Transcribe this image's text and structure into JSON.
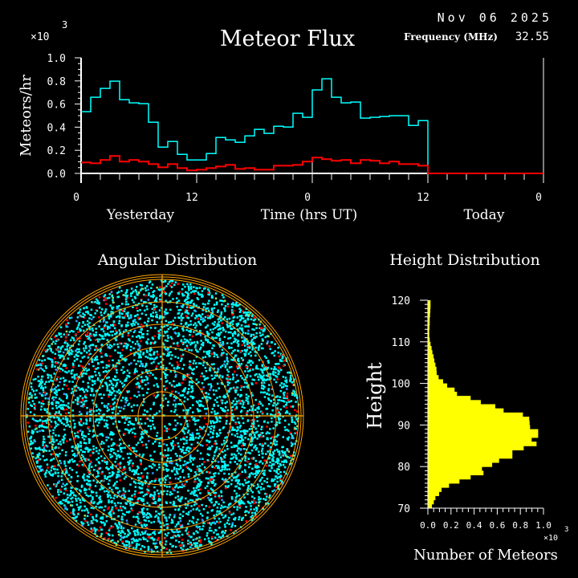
{
  "header": {
    "title": "Meteor Flux",
    "date": "Nov 06 2025",
    "frequency_label": "Frequency (MHz)",
    "frequency_value": "32.55"
  },
  "chart_data": [
    {
      "type": "line",
      "title": "Meteor Flux",
      "ylabel": "Meteors/hr",
      "xlabel": "Time (hrs UT)",
      "y_multiplier": "×10",
      "y_multiplier_exp": "3",
      "ylim": [
        0,
        1.0
      ],
      "yticks": [
        "0.0",
        "0.2",
        "0.4",
        "0.6",
        "0.8",
        "1.0"
      ],
      "xlim": [
        0,
        48
      ],
      "xticks": [
        "0",
        "12",
        "0",
        "12",
        "0"
      ],
      "day_labels": [
        "Yesterday",
        "Today"
      ],
      "step": "hourly",
      "series": [
        {
          "color": "#00ffff",
          "values": [
            0.534,
            0.659,
            0.735,
            0.798,
            0.638,
            0.61,
            0.603,
            0.443,
            0.227,
            0.276,
            0.165,
            0.116,
            0.116,
            0.172,
            0.311,
            0.29,
            0.269,
            0.325,
            0.381,
            0.346,
            0.408,
            0.401,
            0.52,
            0.485,
            0.722,
            0.819,
            0.659,
            0.61,
            0.617,
            0.478,
            0.485,
            0.492,
            0.499,
            0.499,
            0.415,
            0.457,
            0,
            0,
            0,
            0,
            0,
            0,
            0,
            0,
            0,
            0,
            0,
            0
          ]
        },
        {
          "color": "#ff0000",
          "values": [
            0.095,
            0.088,
            0.116,
            0.151,
            0.102,
            0.116,
            0.102,
            0.081,
            0.053,
            0.081,
            0.046,
            0.026,
            0.032,
            0.046,
            0.06,
            0.074,
            0.039,
            0.046,
            0.032,
            0.032,
            0.067,
            0.067,
            0.074,
            0.102,
            0.137,
            0.123,
            0.109,
            0.116,
            0.088,
            0.116,
            0.109,
            0.088,
            0.102,
            0.081,
            0.081,
            0.067,
            0,
            0,
            0,
            0,
            0,
            0,
            0,
            0,
            0,
            0,
            0,
            0
          ]
        }
      ]
    },
    {
      "type": "scatter",
      "title": "Angular Distribution",
      "colors": {
        "points": "#00ffff",
        "underdense": "#ff0000",
        "other": "#3399ff",
        "edge": "#99dd66",
        "grid": "#ffa500"
      }
    },
    {
      "type": "bar",
      "orientation": "horizontal",
      "title": "Height Distribution",
      "ylabel": "Height",
      "xlabel": "Number of Meteors",
      "x_multiplier": "×10",
      "x_multiplier_exp": "3",
      "ylim": [
        70,
        120
      ],
      "yticks": [
        "70",
        "80",
        "90",
        "100",
        "110",
        "120"
      ],
      "xlim": [
        0,
        1.0
      ],
      "xticks": [
        "0.0",
        "0.2",
        "0.4",
        "0.6",
        "0.8",
        "1.0"
      ],
      "color": "#ffff00",
      "bin_start": 70,
      "bin_width": 1,
      "values": [
        0.035,
        0.051,
        0.065,
        0.097,
        0.118,
        0.183,
        0.273,
        0.37,
        0.481,
        0.468,
        0.556,
        0.616,
        0.731,
        0.731,
        0.829,
        0.94,
        0.898,
        0.954,
        0.954,
        0.884,
        0.88,
        0.877,
        0.822,
        0.655,
        0.583,
        0.458,
        0.37,
        0.252,
        0.231,
        0.167,
        0.132,
        0.093,
        0.076,
        0.074,
        0.065,
        0.056,
        0.049,
        0.039,
        0.032,
        0.023,
        0.016,
        0.012,
        0.012,
        0.014,
        0.016,
        0.016,
        0.019,
        0.021,
        0.023,
        0.023
      ]
    }
  ]
}
